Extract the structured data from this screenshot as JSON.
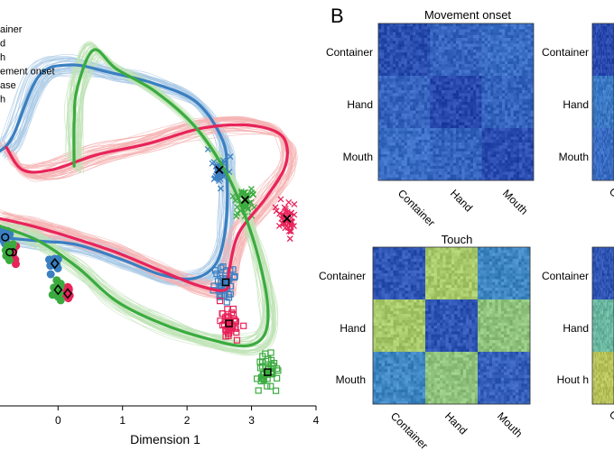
{
  "panel_b_label": "B",
  "colors": {
    "container": "#3a7fc1",
    "hand": "#e8245a",
    "mouth": "#3bab3f",
    "container_light": "#a9c9e6",
    "hand_light": "#f5b3b3",
    "mouth_light": "#bfe3b5"
  },
  "chart_data": [
    {
      "type": "line",
      "panel": "A",
      "xlabel": "Dimension 1",
      "ylabel": "",
      "x_ticks": [
        "0",
        "1",
        "2",
        "3",
        "4"
      ],
      "xlim": [
        -0.9,
        4.0
      ],
      "ylim": [
        -3.2,
        2.0
      ],
      "legend": {
        "placement": "top-left",
        "entries": [
          "ainer",
          "d",
          "h",
          "ement onset",
          "ase",
          "h"
        ]
      },
      "series": [
        {
          "color_key": "container",
          "x": [
            -0.9,
            -0.3,
            0.3,
            1.0,
            1.6,
            2.1,
            2.45,
            2.6,
            2.62,
            2.55,
            2.15,
            1.5,
            0.8,
            0.2,
            -0.3,
            -0.7,
            -0.9
          ],
          "y": [
            -0.95,
            -1.0,
            -1.05,
            -1.25,
            -1.45,
            -1.5,
            -1.3,
            -0.8,
            -0.1,
            0.35,
            0.85,
            1.1,
            1.25,
            1.35,
            1.2,
            0.4,
            0.2
          ]
        },
        {
          "color_key": "hand",
          "x": [
            -0.9,
            -0.4,
            0.2,
            0.9,
            1.6,
            2.2,
            2.6,
            2.65,
            2.8,
            3.2,
            3.5,
            3.55,
            3.4,
            2.9,
            2.2,
            1.4,
            0.6,
            -0.1,
            -0.55,
            -0.8
          ],
          "y": [
            -0.7,
            -0.8,
            -0.95,
            -1.15,
            -1.4,
            -1.6,
            -1.65,
            -1.4,
            -0.9,
            -0.45,
            -0.05,
            0.25,
            0.45,
            0.55,
            0.5,
            0.3,
            0.15,
            -0.05,
            -0.05,
            0.25
          ]
        },
        {
          "color_key": "mouth",
          "x": [
            -0.9,
            -0.3,
            0.3,
            0.9,
            1.6,
            2.3,
            2.9,
            3.2,
            3.25,
            3.1,
            2.85,
            2.55,
            2.1,
            1.5,
            0.9,
            0.55,
            0.3,
            0.25,
            0.25
          ],
          "y": [
            -0.8,
            -1.0,
            -1.35,
            -1.8,
            -2.1,
            -2.3,
            -2.4,
            -2.25,
            -1.85,
            -1.2,
            -0.55,
            0.0,
            0.55,
            1.0,
            1.3,
            1.55,
            1.05,
            0.6,
            0.0
          ]
        }
      ],
      "markers": [
        {
          "color_key": "container",
          "shape": "x",
          "x": 2.5,
          "y": -0.05
        },
        {
          "color_key": "mouth",
          "shape": "x",
          "x": 2.9,
          "y": -0.45
        },
        {
          "color_key": "hand",
          "shape": "x",
          "x": 3.55,
          "y": -0.7
        },
        {
          "color_key": "container",
          "shape": "square",
          "x": 2.6,
          "y": -1.55
        },
        {
          "color_key": "hand",
          "shape": "square",
          "x": 2.65,
          "y": -2.1
        },
        {
          "color_key": "mouth",
          "shape": "square",
          "x": 3.25,
          "y": -2.75
        },
        {
          "color_key": "container",
          "shape": "circle",
          "x": -0.82,
          "y": -0.95
        },
        {
          "color_key": "hand",
          "shape": "circle",
          "x": -0.7,
          "y": -1.15
        },
        {
          "color_key": "mouth",
          "shape": "circle",
          "x": -0.75,
          "y": -1.15
        },
        {
          "color_key": "container",
          "shape": "diamond",
          "x": -0.05,
          "y": -1.3
        },
        {
          "color_key": "hand",
          "shape": "diamond",
          "x": 0.15,
          "y": -1.7
        },
        {
          "color_key": "mouth",
          "shape": "diamond",
          "x": 0.0,
          "y": -1.65
        }
      ]
    },
    {
      "type": "heatmap",
      "panel": "B",
      "title": "Movement onset",
      "row_labels": [
        "Container",
        "Hand",
        "Mouth"
      ],
      "col_labels": [
        "Container",
        "Hand",
        "Mouth"
      ],
      "block_colors": [
        [
          "#2a4fb0",
          "#3664be",
          "#3a6dc4"
        ],
        [
          "#3664be",
          "#2848ae",
          "#3564bf"
        ],
        [
          "#3a6dc4",
          "#3564bf",
          "#2b4db1"
        ]
      ]
    },
    {
      "type": "heatmap",
      "panel": "B",
      "title": "Touch",
      "row_labels": [
        "Container",
        "Hand",
        "Mouth"
      ],
      "col_labels": [
        "Container",
        "Hand",
        "Mouth"
      ],
      "block_colors": [
        [
          "#2f55b5",
          "#a7c96a",
          "#3f87c3"
        ],
        [
          "#a7c96a",
          "#2f55b5",
          "#8fc27c"
        ],
        [
          "#3f87c3",
          "#8fc27c",
          "#3560bb"
        ]
      ]
    },
    {
      "type": "heatmap",
      "panel": "B",
      "title": "",
      "row_labels": [
        "",
        "",
        ""
      ],
      "col_labels": [
        "C"
      ],
      "block_colors": [
        [
          "#2a4ab0"
        ],
        [
          "#3a78c4"
        ],
        [
          "#3a6dc4"
        ]
      ]
    },
    {
      "type": "heatmap",
      "panel": "B",
      "title": "",
      "row_labels": [
        "",
        "",
        ""
      ],
      "col_labels": [
        "C"
      ],
      "block_colors": [
        [
          "#2f55b5"
        ],
        [
          "#6ab7a0"
        ],
        [
          "#b7c25a"
        ]
      ]
    }
  ],
  "partial_labels": {
    "right_top": [
      "Container",
      "Hand",
      "Mouth"
    ],
    "right_bottom": [
      "Container",
      "Hand",
      "Hout h"
    ]
  }
}
